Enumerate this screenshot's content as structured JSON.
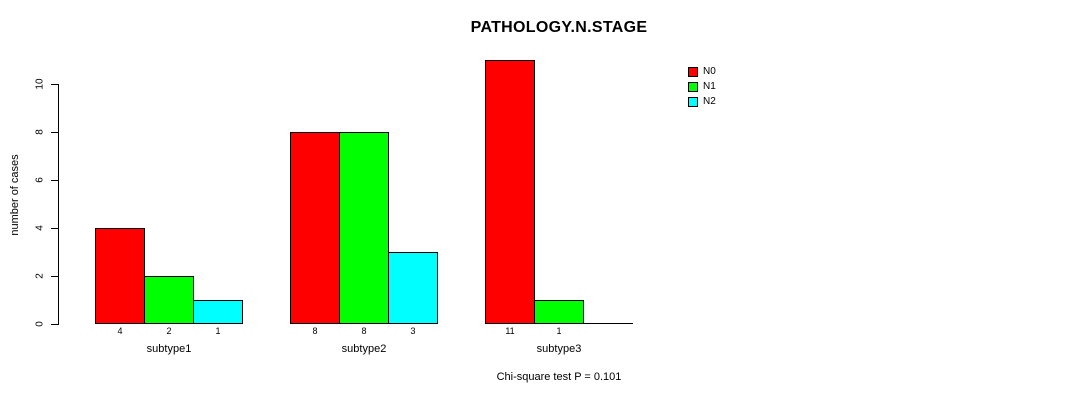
{
  "chart_data": {
    "type": "bar",
    "title": "PATHOLOGY.N.STAGE",
    "xlabel": "",
    "ylabel": "number of cases",
    "categories": [
      "subtype1",
      "subtype2",
      "subtype3"
    ],
    "series": [
      {
        "name": "N0",
        "color": "#ff0000",
        "values": [
          4,
          8,
          11
        ]
      },
      {
        "name": "N1",
        "color": "#00ff00",
        "values": [
          2,
          8,
          1
        ]
      },
      {
        "name": "N2",
        "color": "#00ffff",
        "values": [
          1,
          3,
          0
        ]
      }
    ],
    "bar_value_labels": [
      [
        "4",
        "2",
        "1"
      ],
      [
        "8",
        "8",
        "3"
      ],
      [
        "11",
        "1",
        ""
      ]
    ],
    "yticks": [
      0,
      2,
      4,
      6,
      8,
      10
    ],
    "ylim": [
      0,
      11
    ],
    "grid": false,
    "legend_position": "right",
    "annotation": "Chi-square test P = 0.101",
    "colors": {
      "background": "#ffffff",
      "text": "#000000",
      "axis": "#000000",
      "bar_border": "#000000"
    }
  }
}
